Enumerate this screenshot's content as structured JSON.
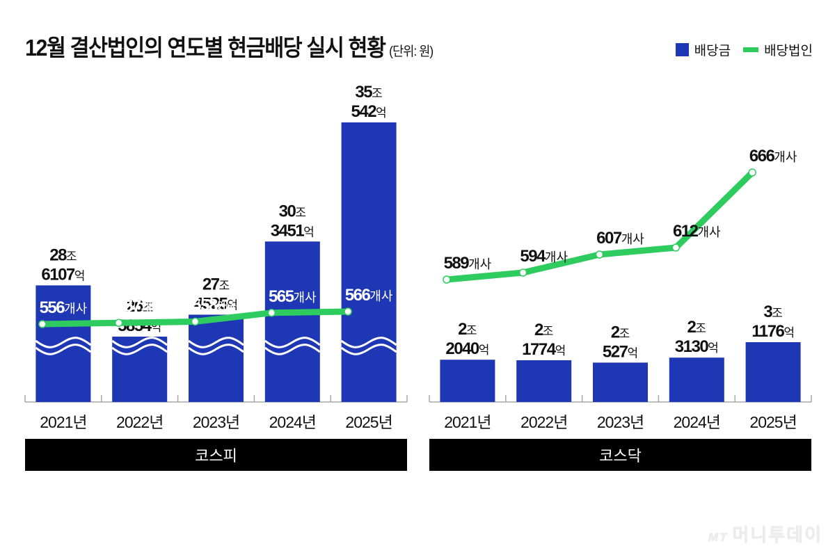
{
  "title": "12월 결산법인의 연도별 현금배당 실시 현황",
  "unit": "(단위: 원)",
  "legend": [
    {
      "label": "배당금",
      "type": "bar",
      "color": "#1e37b5"
    },
    {
      "label": "배당법인",
      "type": "line",
      "color": "#2ecc5f"
    }
  ],
  "watermark": {
    "mark": "MT",
    "name": "머니투데이"
  },
  "chart_data": [
    {
      "type": "bar",
      "panel": "코스피",
      "categories": [
        "2021년",
        "2022년",
        "2023년",
        "2024년",
        "2025년"
      ],
      "series": [
        {
          "name": "배당금",
          "unit": "억원",
          "values": [
            286107,
            265854,
            274525,
            303451,
            350542
          ],
          "labels": [
            [
              "28조",
              "6107억"
            ],
            [
              "26조",
              "5854억"
            ],
            [
              "27조",
              "4525억"
            ],
            [
              "30조",
              "3451억"
            ],
            [
              "35조",
              "542억"
            ]
          ],
          "axis_break": true
        },
        {
          "name": "배당법인",
          "type": "line",
          "unit": "개사",
          "values": [
            556,
            557,
            558,
            565,
            566
          ],
          "labels": [
            "556개사",
            "557개사",
            "558개사",
            "565개사",
            "566개사"
          ]
        }
      ]
    },
    {
      "type": "bar",
      "panel": "코스닥",
      "categories": [
        "2021년",
        "2022년",
        "2023년",
        "2024년",
        "2025년"
      ],
      "series": [
        {
          "name": "배당금",
          "unit": "억원",
          "values": [
            22040,
            21774,
            20527,
            23130,
            31176
          ],
          "labels": [
            [
              "2조",
              "2040억"
            ],
            [
              "2조",
              "1774억"
            ],
            [
              "2조",
              "527억"
            ],
            [
              "2조",
              "3130억"
            ],
            [
              "3조",
              "1176억"
            ]
          ]
        },
        {
          "name": "배당법인",
          "type": "line",
          "unit": "개사",
          "values": [
            589,
            594,
            607,
            612,
            666
          ],
          "labels": [
            "589개사",
            "594개사",
            "607개사",
            "612개사",
            "666개사"
          ]
        }
      ]
    }
  ]
}
